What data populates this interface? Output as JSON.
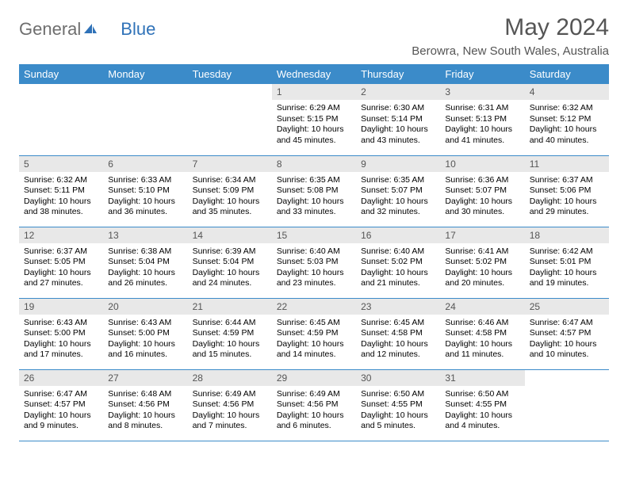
{
  "logo": {
    "text1": "General",
    "text2": "Blue"
  },
  "title": "May 2024",
  "location": "Berowra, New South Wales, Australia",
  "header_bg": "#3b8bc9",
  "header_fg": "#ffffff",
  "daynum_bg": "#e8e8e8",
  "rule_color": "#3b8bc9",
  "dayHeaders": [
    "Sunday",
    "Monday",
    "Tuesday",
    "Wednesday",
    "Thursday",
    "Friday",
    "Saturday"
  ],
  "weeks": [
    [
      {
        "n": "",
        "lines": []
      },
      {
        "n": "",
        "lines": []
      },
      {
        "n": "",
        "lines": []
      },
      {
        "n": "1",
        "lines": [
          "Sunrise: 6:29 AM",
          "Sunset: 5:15 PM",
          "Daylight: 10 hours and 45 minutes."
        ]
      },
      {
        "n": "2",
        "lines": [
          "Sunrise: 6:30 AM",
          "Sunset: 5:14 PM",
          "Daylight: 10 hours and 43 minutes."
        ]
      },
      {
        "n": "3",
        "lines": [
          "Sunrise: 6:31 AM",
          "Sunset: 5:13 PM",
          "Daylight: 10 hours and 41 minutes."
        ]
      },
      {
        "n": "4",
        "lines": [
          "Sunrise: 6:32 AM",
          "Sunset: 5:12 PM",
          "Daylight: 10 hours and 40 minutes."
        ]
      }
    ],
    [
      {
        "n": "5",
        "lines": [
          "Sunrise: 6:32 AM",
          "Sunset: 5:11 PM",
          "Daylight: 10 hours and 38 minutes."
        ]
      },
      {
        "n": "6",
        "lines": [
          "Sunrise: 6:33 AM",
          "Sunset: 5:10 PM",
          "Daylight: 10 hours and 36 minutes."
        ]
      },
      {
        "n": "7",
        "lines": [
          "Sunrise: 6:34 AM",
          "Sunset: 5:09 PM",
          "Daylight: 10 hours and 35 minutes."
        ]
      },
      {
        "n": "8",
        "lines": [
          "Sunrise: 6:35 AM",
          "Sunset: 5:08 PM",
          "Daylight: 10 hours and 33 minutes."
        ]
      },
      {
        "n": "9",
        "lines": [
          "Sunrise: 6:35 AM",
          "Sunset: 5:07 PM",
          "Daylight: 10 hours and 32 minutes."
        ]
      },
      {
        "n": "10",
        "lines": [
          "Sunrise: 6:36 AM",
          "Sunset: 5:07 PM",
          "Daylight: 10 hours and 30 minutes."
        ]
      },
      {
        "n": "11",
        "lines": [
          "Sunrise: 6:37 AM",
          "Sunset: 5:06 PM",
          "Daylight: 10 hours and 29 minutes."
        ]
      }
    ],
    [
      {
        "n": "12",
        "lines": [
          "Sunrise: 6:37 AM",
          "Sunset: 5:05 PM",
          "Daylight: 10 hours and 27 minutes."
        ]
      },
      {
        "n": "13",
        "lines": [
          "Sunrise: 6:38 AM",
          "Sunset: 5:04 PM",
          "Daylight: 10 hours and 26 minutes."
        ]
      },
      {
        "n": "14",
        "lines": [
          "Sunrise: 6:39 AM",
          "Sunset: 5:04 PM",
          "Daylight: 10 hours and 24 minutes."
        ]
      },
      {
        "n": "15",
        "lines": [
          "Sunrise: 6:40 AM",
          "Sunset: 5:03 PM",
          "Daylight: 10 hours and 23 minutes."
        ]
      },
      {
        "n": "16",
        "lines": [
          "Sunrise: 6:40 AM",
          "Sunset: 5:02 PM",
          "Daylight: 10 hours and 21 minutes."
        ]
      },
      {
        "n": "17",
        "lines": [
          "Sunrise: 6:41 AM",
          "Sunset: 5:02 PM",
          "Daylight: 10 hours and 20 minutes."
        ]
      },
      {
        "n": "18",
        "lines": [
          "Sunrise: 6:42 AM",
          "Sunset: 5:01 PM",
          "Daylight: 10 hours and 19 minutes."
        ]
      }
    ],
    [
      {
        "n": "19",
        "lines": [
          "Sunrise: 6:43 AM",
          "Sunset: 5:00 PM",
          "Daylight: 10 hours and 17 minutes."
        ]
      },
      {
        "n": "20",
        "lines": [
          "Sunrise: 6:43 AM",
          "Sunset: 5:00 PM",
          "Daylight: 10 hours and 16 minutes."
        ]
      },
      {
        "n": "21",
        "lines": [
          "Sunrise: 6:44 AM",
          "Sunset: 4:59 PM",
          "Daylight: 10 hours and 15 minutes."
        ]
      },
      {
        "n": "22",
        "lines": [
          "Sunrise: 6:45 AM",
          "Sunset: 4:59 PM",
          "Daylight: 10 hours and 14 minutes."
        ]
      },
      {
        "n": "23",
        "lines": [
          "Sunrise: 6:45 AM",
          "Sunset: 4:58 PM",
          "Daylight: 10 hours and 12 minutes."
        ]
      },
      {
        "n": "24",
        "lines": [
          "Sunrise: 6:46 AM",
          "Sunset: 4:58 PM",
          "Daylight: 10 hours and 11 minutes."
        ]
      },
      {
        "n": "25",
        "lines": [
          "Sunrise: 6:47 AM",
          "Sunset: 4:57 PM",
          "Daylight: 10 hours and 10 minutes."
        ]
      }
    ],
    [
      {
        "n": "26",
        "lines": [
          "Sunrise: 6:47 AM",
          "Sunset: 4:57 PM",
          "Daylight: 10 hours and 9 minutes."
        ]
      },
      {
        "n": "27",
        "lines": [
          "Sunrise: 6:48 AM",
          "Sunset: 4:56 PM",
          "Daylight: 10 hours and 8 minutes."
        ]
      },
      {
        "n": "28",
        "lines": [
          "Sunrise: 6:49 AM",
          "Sunset: 4:56 PM",
          "Daylight: 10 hours and 7 minutes."
        ]
      },
      {
        "n": "29",
        "lines": [
          "Sunrise: 6:49 AM",
          "Sunset: 4:56 PM",
          "Daylight: 10 hours and 6 minutes."
        ]
      },
      {
        "n": "30",
        "lines": [
          "Sunrise: 6:50 AM",
          "Sunset: 4:55 PM",
          "Daylight: 10 hours and 5 minutes."
        ]
      },
      {
        "n": "31",
        "lines": [
          "Sunrise: 6:50 AM",
          "Sunset: 4:55 PM",
          "Daylight: 10 hours and 4 minutes."
        ]
      },
      {
        "n": "",
        "lines": []
      }
    ]
  ]
}
